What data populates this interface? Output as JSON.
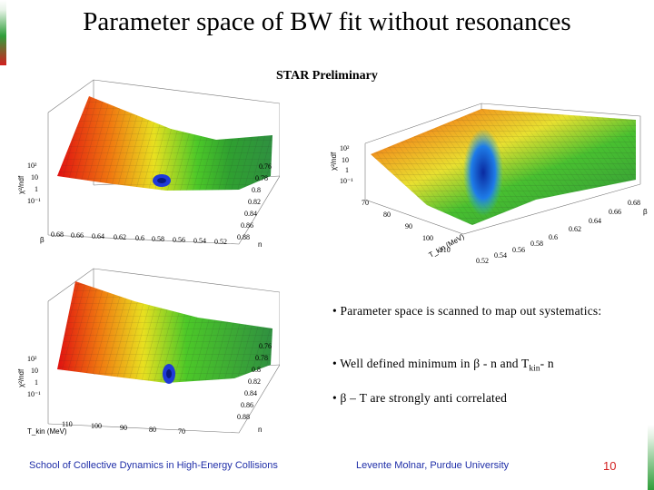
{
  "slide": {
    "title": "Parameter space of BW fit without resonances",
    "watermark": "STAR Preliminary",
    "bullets": {
      "scan": "• Parameter space is scanned to map out systematics:",
      "minimum_prefix": "• Well defined minimum in β - n and T",
      "minimum_sub": "kin",
      "minimum_suffix": "- n",
      "correlation": "• β – T are strongly anti correlated"
    },
    "footer": {
      "left": "School of Collective Dynamics in High-Energy Collisions",
      "center": "Levente Molnar, Purdue University",
      "page": "10"
    },
    "colors": {
      "accent_red": "#d21f1f",
      "accent_green": "#2f9e3a",
      "footer_blue": "#1f2ea8"
    }
  },
  "plots": {
    "top_left": {
      "z_label": "χ²/ndf",
      "z_ticks": [
        "10²",
        "10",
        "1",
        "10⁻¹"
      ],
      "x_label": "β",
      "x_ticks": [
        "0.68",
        "0.66",
        "0.64",
        "0.62",
        "0.6",
        "0.58",
        "0.56",
        "0.54",
        "0.52"
      ],
      "y_label": "n",
      "y_ticks": [
        "0.76",
        "0.78",
        "0.8",
        "0.82",
        "0.84",
        "0.86",
        "0.88"
      ]
    },
    "top_right": {
      "z_label": "χ²/ndf",
      "z_ticks": [
        "10²",
        "10",
        "1",
        "10⁻¹"
      ],
      "x_label": "T_kin (MeV)",
      "x_ticks": [
        "70",
        "80",
        "90",
        "100",
        "110"
      ],
      "y_label": "β",
      "y_ticks": [
        "0.68",
        "0.66",
        "0.64",
        "0.62",
        "0.6",
        "0.58",
        "0.56",
        "0.54",
        "0.52"
      ]
    },
    "bottom_left": {
      "z_label": "χ²/ndf",
      "z_ticks": [
        "10²",
        "10",
        "1",
        "10⁻¹"
      ],
      "x_label": "T_kin (MeV)",
      "x_ticks": [
        "110",
        "100",
        "90",
        "80",
        "70"
      ],
      "y_label": "n",
      "y_ticks": [
        "0.76",
        "0.78",
        "0.8",
        "0.82",
        "0.84",
        "0.86",
        "0.88"
      ]
    }
  }
}
